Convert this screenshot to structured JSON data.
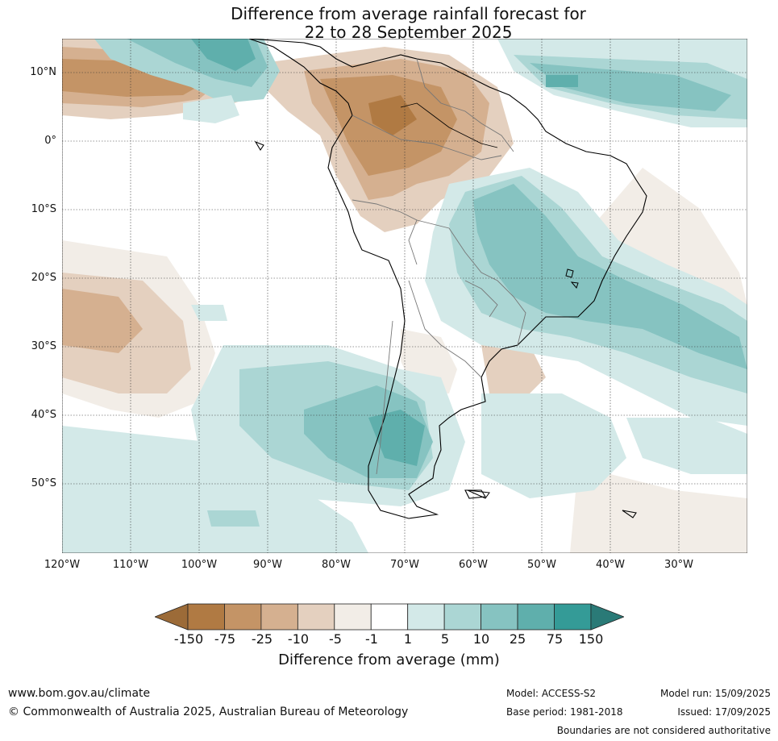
{
  "title": {
    "line1": "Difference from average rainfall forecast for",
    "line2": "22 to 28 September 2025"
  },
  "map": {
    "latitude_labels": [
      "10°N",
      "0°",
      "10°S",
      "20°S",
      "30°S",
      "40°S",
      "50°S"
    ],
    "longitude_labels": [
      "120°W",
      "110°W",
      "100°W",
      "90°W",
      "80°W",
      "70°W",
      "60°W",
      "50°W",
      "40°W",
      "30°W"
    ]
  },
  "colorbar": {
    "ticks": [
      "-150",
      "-75",
      "-25",
      "-10",
      "-5",
      "-1",
      "1",
      "5",
      "10",
      "25",
      "75",
      "150"
    ],
    "colors": [
      "#9c6b38",
      "#b07a43",
      "#c49466",
      "#d5b090",
      "#e4d0bf",
      "#f2ede7",
      "#ffffff",
      "#d3e9e8",
      "#abd6d4",
      "#86c3c1",
      "#5fafac",
      "#349b97",
      "#2a7a77"
    ],
    "label": "Difference from average (mm)"
  },
  "footer": {
    "url": "www.bom.gov.au/climate",
    "copyright": "© Commonwealth of Australia 2025, Australian Bureau of Meteorology",
    "model": "Model: ACCESS-S2",
    "base_period": "Base period: 1981-2018",
    "model_run": "Model run: 15/09/2025",
    "issued": "Issued: 17/09/2025",
    "boundaries_note": "Boundaries are not considered authoritative"
  }
}
